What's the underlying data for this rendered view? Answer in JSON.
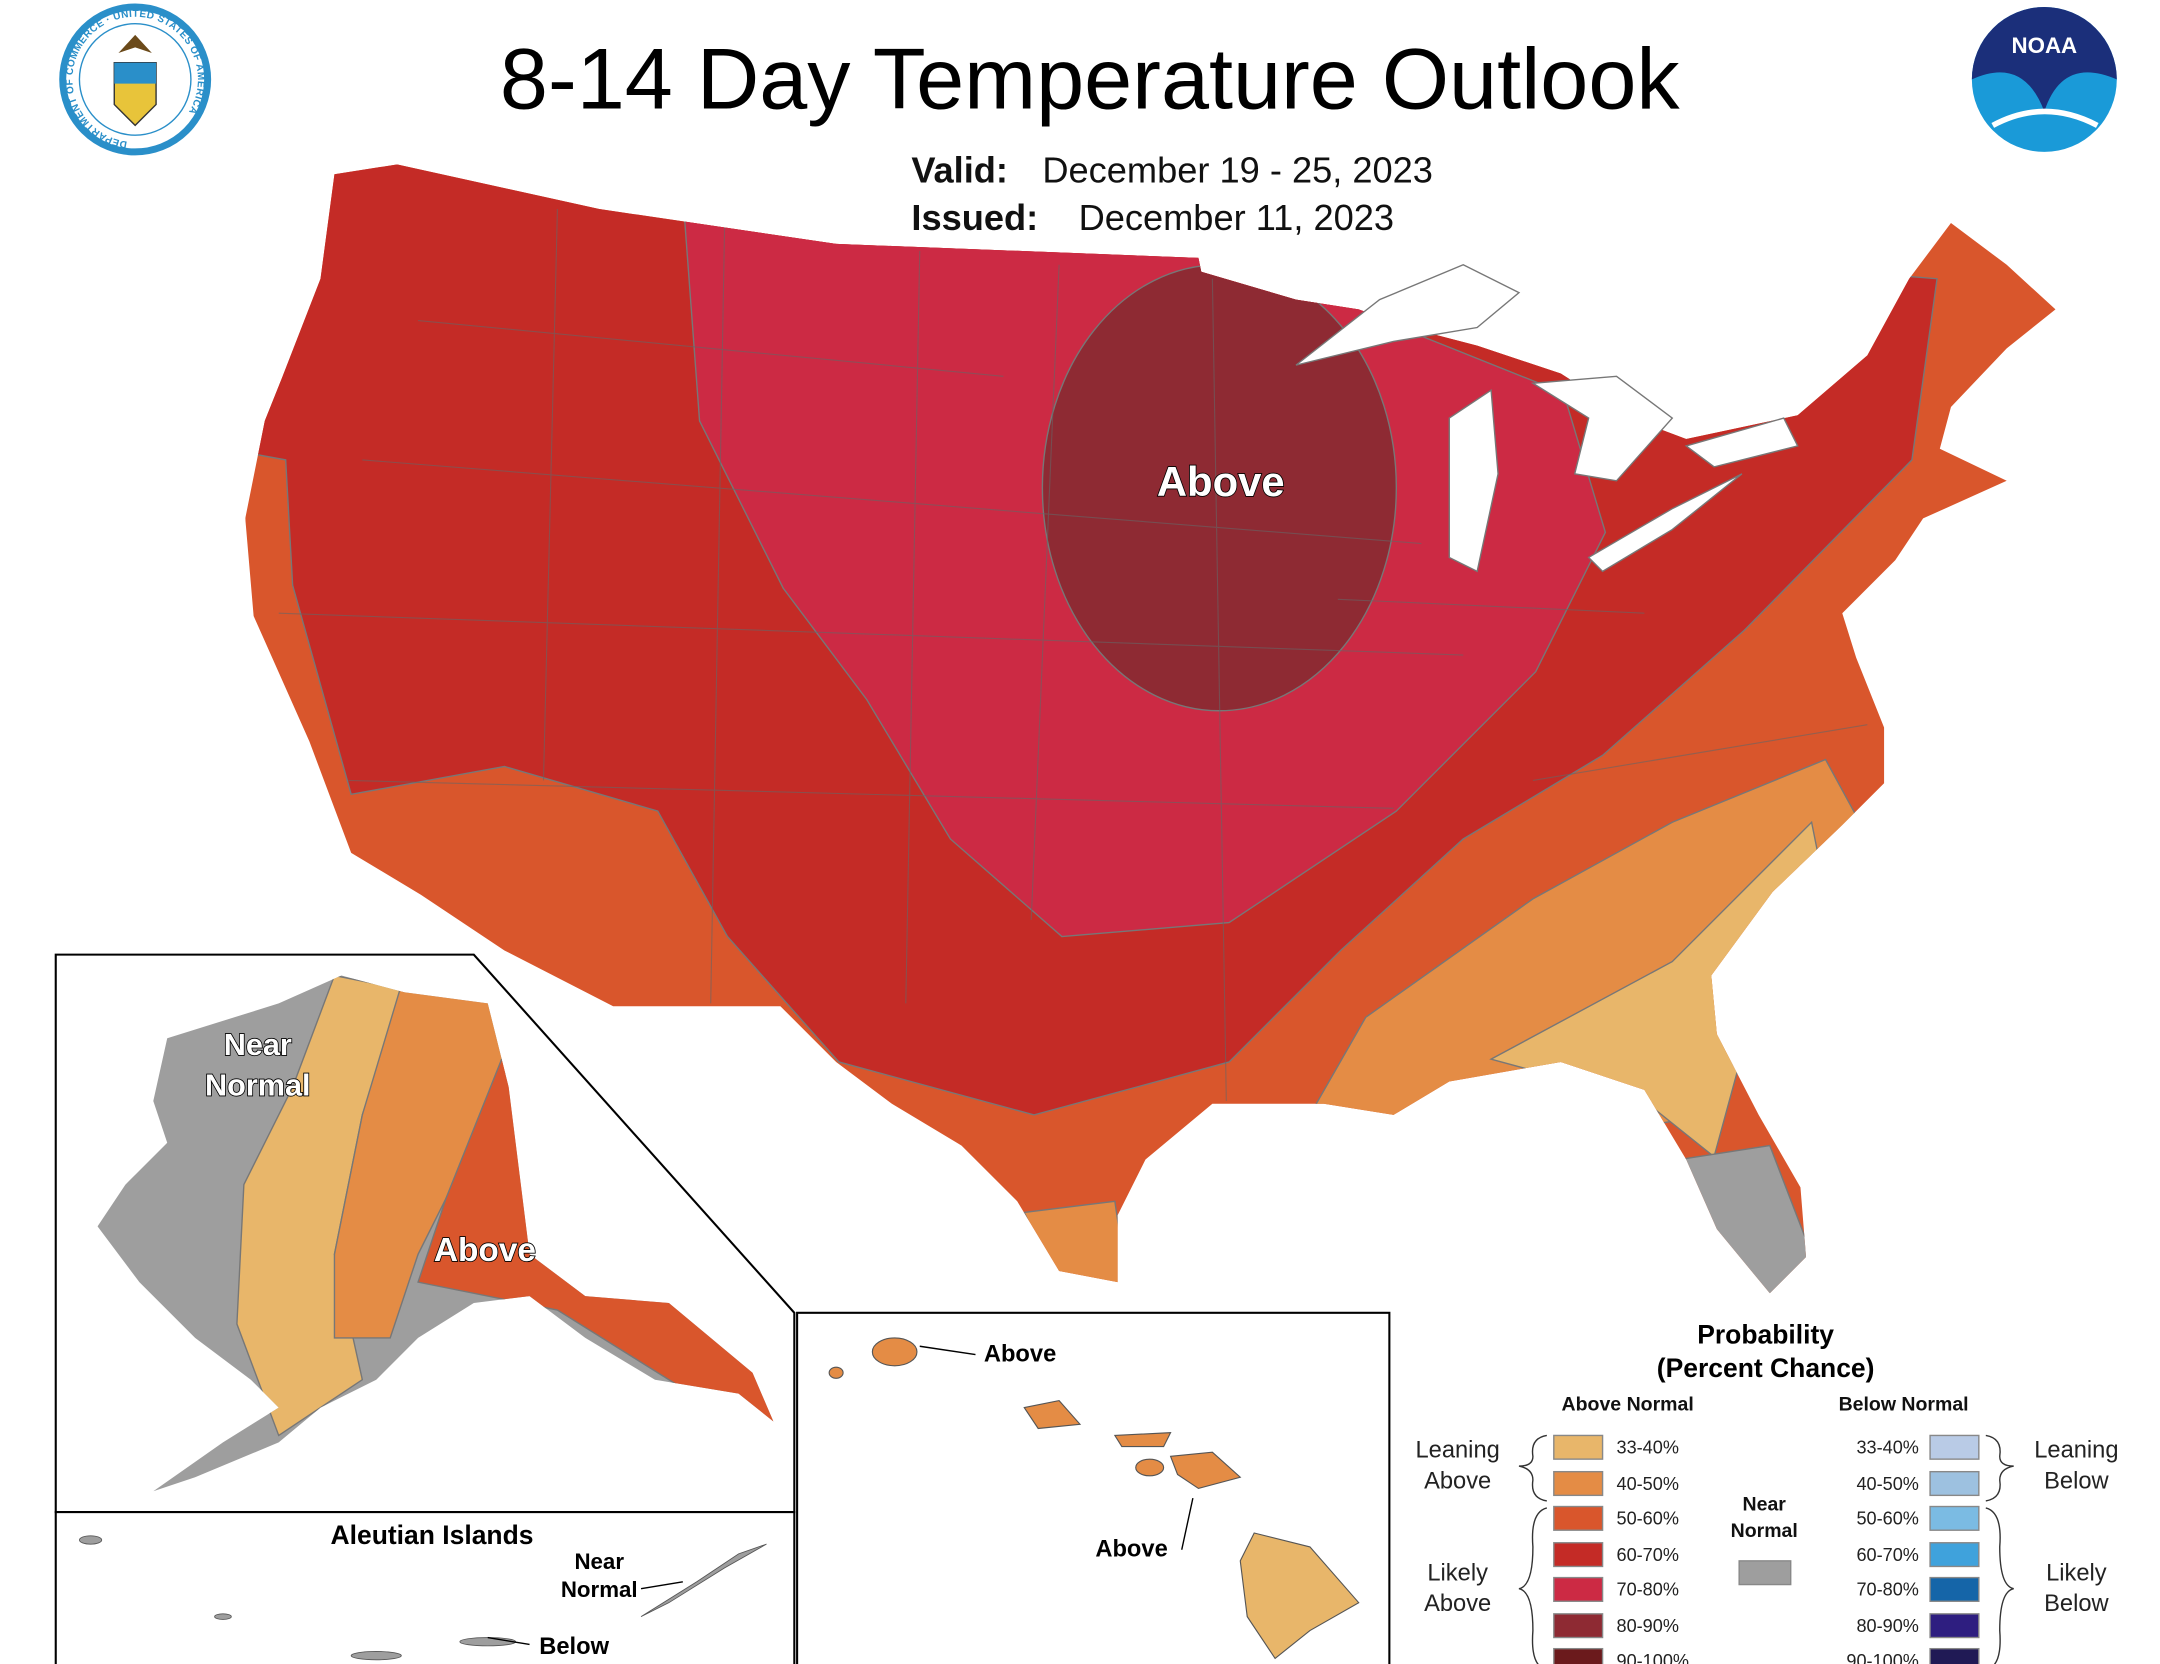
{
  "header": {
    "title": "8-14 Day Temperature Outlook",
    "valid_label": "Valid:",
    "valid_dates": "December 19 - 25, 2023",
    "issued_label": "Issued:",
    "issued_date": "December 11, 2023",
    "left_logo": "Department of Commerce seal",
    "left_logo_text": "DEPARTMENT OF COMMERCE · UNITED STATES OF AMERICA",
    "right_logo": "NOAA logo",
    "right_logo_text": "NOAA"
  },
  "map": {
    "conus_label": "Above",
    "alaska": {
      "near_normal_line1": "Near",
      "near_normal_line2": "Normal",
      "above": "Above"
    },
    "aleutians": {
      "title": "Aleutian Islands",
      "near_line1": "Near",
      "near_line2": "Normal",
      "below": "Below"
    },
    "hawaii": {
      "above_north": "Above",
      "above_south": "Above"
    }
  },
  "legend": {
    "title": "Probability",
    "subtitle": "(Percent Chance)",
    "above_header": "Above Normal",
    "below_header": "Below Normal",
    "leaning_above": [
      "Leaning",
      "Above"
    ],
    "likely_above": [
      "Likely",
      "Above"
    ],
    "leaning_below": [
      "Leaning",
      "Below"
    ],
    "likely_below": [
      "Likely",
      "Below"
    ],
    "near_normal": [
      "Near",
      "Normal"
    ],
    "near_normal_color": "#9e9e9e",
    "above": [
      {
        "range": "33-40%",
        "color": "#e8b66a"
      },
      {
        "range": "40-50%",
        "color": "#e48c45"
      },
      {
        "range": "50-60%",
        "color": "#d9562c"
      },
      {
        "range": "60-70%",
        "color": "#c42b26"
      },
      {
        "range": "70-80%",
        "color": "#cc2a44"
      },
      {
        "range": "80-90%",
        "color": "#8e2a33"
      },
      {
        "range": "90-100%",
        "color": "#6b1a1c"
      }
    ],
    "below": [
      {
        "range": "33-40%",
        "color": "#b9cbe6"
      },
      {
        "range": "40-50%",
        "color": "#9dc1e0"
      },
      {
        "range": "50-60%",
        "color": "#7bbbe3"
      },
      {
        "range": "60-70%",
        "color": "#3fa2dc"
      },
      {
        "range": "70-80%",
        "color": "#1565a8"
      },
      {
        "range": "80-90%",
        "color": "#2e1e80"
      },
      {
        "range": "90-100%",
        "color": "#201a55"
      }
    ]
  }
}
